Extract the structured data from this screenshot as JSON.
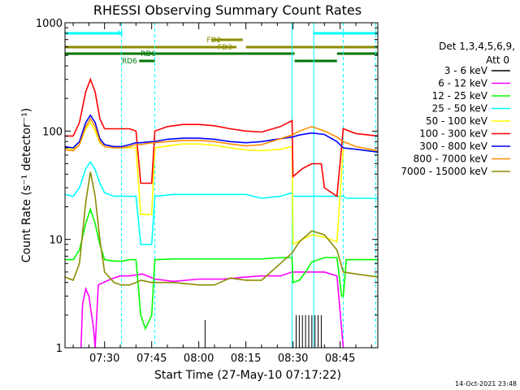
{
  "chart_data": {
    "type": "line",
    "title": "RHESSI Observing Summary Count Rates",
    "xlabel": "Start Time (27-May-10 07:17:22)",
    "ylabel": "Count Rate (s⁻¹ detector⁻¹)",
    "yscale": "log",
    "ylim": [
      1,
      1000
    ],
    "xlim_minutes": [
      17.4,
      117.0
    ],
    "x_ticks": [
      {
        "t": 30,
        "label": "07:30"
      },
      {
        "t": 45,
        "label": "07:45"
      },
      {
        "t": 60,
        "label": "08:00"
      },
      {
        "t": 75,
        "label": "08:15"
      },
      {
        "t": 90,
        "label": "08:30"
      },
      {
        "t": 105,
        "label": "08:45"
      }
    ],
    "y_ticks": [
      {
        "v": 1,
        "label": "1"
      },
      {
        "v": 10,
        "label": "10"
      },
      {
        "v": 100,
        "label": "100"
      },
      {
        "v": 1000,
        "label": "1000"
      }
    ],
    "legend_title": [
      "Det 1,3,4,5,6,9,",
      "Att 0"
    ],
    "legend_placement": "right",
    "footer_date": "14-Oct-2021 23:48",
    "flags": [
      {
        "name": "N",
        "color": "#00ffff",
        "segments": [
          [
            17.4,
            35.4
          ],
          [
            96.5,
            117.0
          ]
        ]
      },
      {
        "name": "FD2",
        "color": "#8b8b00",
        "segments": [
          [
            64,
            74
          ]
        ]
      },
      {
        "name": "FD3",
        "color": "#8b8b00",
        "segments": [
          [
            17.4,
            72
          ],
          [
            75,
            117.0
          ]
        ]
      },
      {
        "name": "RD0",
        "color": "#007700",
        "segments": [
          [
            17.4,
            90.5
          ],
          [
            104,
            117.0
          ]
        ]
      },
      {
        "name": "RD6",
        "color": "#007700",
        "segments": [
          [
            41,
            46
          ],
          [
            90.5,
            104
          ]
        ]
      }
    ],
    "flag_label_t": {
      "N": 35.4,
      "FD2": 62.5,
      "FD3": 66,
      "RD0": 41.5,
      "RD6": 35.5
    },
    "vlines_cyan": [
      35.4,
      46.0,
      89.7,
      96.6,
      106.0,
      116.3
    ],
    "series": [
      {
        "name": "3 - 6 keV",
        "color": "#000000",
        "points": [
          [
            91,
            1
          ],
          [
            91,
            2
          ],
          [
            92,
            1
          ],
          [
            92,
            2
          ],
          [
            93,
            1
          ],
          [
            93,
            2
          ],
          [
            94,
            1
          ],
          [
            94,
            2
          ],
          [
            95,
            1
          ],
          [
            95,
            2
          ],
          [
            96,
            1
          ],
          [
            96,
            2
          ],
          [
            97,
            1
          ],
          [
            97,
            2
          ],
          [
            98,
            1
          ],
          [
            98,
            2
          ],
          [
            99,
            1
          ],
          [
            99,
            2
          ],
          [
            62,
            1
          ],
          [
            62,
            1.8
          ]
        ]
      },
      {
        "name": "6 - 12 keV",
        "color": "#ff00ff",
        "points": [
          [
            22.5,
            1.0
          ],
          [
            23,
            2.5
          ],
          [
            24,
            3.5
          ],
          [
            25,
            3.0
          ],
          [
            26.5,
            1.5
          ],
          [
            27,
            1.0
          ],
          [
            28,
            3.8
          ],
          [
            32,
            4.3
          ],
          [
            35,
            4.6
          ],
          [
            38,
            4.6
          ],
          [
            42,
            4.8
          ],
          [
            46,
            4.3
          ],
          [
            52,
            4.1
          ],
          [
            60,
            4.3
          ],
          [
            68,
            4.3
          ],
          [
            75,
            4.5
          ],
          [
            80,
            4.6
          ],
          [
            86,
            4.6
          ],
          [
            89.7,
            5.0
          ],
          [
            90,
            5.0
          ],
          [
            94,
            5.0
          ],
          [
            100,
            5.0
          ],
          [
            104,
            4.6
          ],
          [
            106,
            1.0
          ]
        ]
      },
      {
        "name": "12 - 25 keV",
        "color": "#00ff00",
        "points": [
          [
            17.4,
            6.5
          ],
          [
            20,
            6.5
          ],
          [
            22,
            8
          ],
          [
            24,
            14
          ],
          [
            25.5,
            19
          ],
          [
            27,
            14
          ],
          [
            28.5,
            9
          ],
          [
            30,
            6.5
          ],
          [
            33,
            6.3
          ],
          [
            35.4,
            6.3
          ],
          [
            38,
            6.5
          ],
          [
            40,
            6.5
          ],
          [
            41.5,
            2
          ],
          [
            43,
            1.5
          ],
          [
            45,
            2
          ],
          [
            46,
            6.5
          ],
          [
            52,
            6.6
          ],
          [
            60,
            6.6
          ],
          [
            68,
            6.6
          ],
          [
            75,
            6.6
          ],
          [
            80,
            6.6
          ],
          [
            86,
            6.8
          ],
          [
            89.7,
            6.8
          ],
          [
            90,
            4
          ],
          [
            92,
            4.2
          ],
          [
            94,
            5
          ],
          [
            96,
            6.2
          ],
          [
            100,
            6.8
          ],
          [
            104,
            6.8
          ],
          [
            105.5,
            3
          ],
          [
            106,
            3
          ],
          [
            107,
            6.5
          ],
          [
            117,
            6.5
          ]
        ]
      },
      {
        "name": "25 - 50 keV",
        "color": "#00ffff",
        "points": [
          [
            17.4,
            26
          ],
          [
            20,
            25
          ],
          [
            22,
            30
          ],
          [
            24,
            45
          ],
          [
            25.5,
            52
          ],
          [
            27,
            44
          ],
          [
            28.5,
            33
          ],
          [
            30,
            27
          ],
          [
            33,
            25
          ],
          [
            35.4,
            25
          ],
          [
            38,
            25
          ],
          [
            40,
            25
          ],
          [
            41.5,
            9
          ],
          [
            45,
            9
          ],
          [
            46,
            25
          ],
          [
            52,
            26
          ],
          [
            60,
            26
          ],
          [
            68,
            26
          ],
          [
            75,
            26
          ],
          [
            80,
            24
          ],
          [
            86,
            25
          ],
          [
            89.7,
            27
          ],
          [
            90,
            25
          ],
          [
            96,
            25
          ],
          [
            100,
            25
          ],
          [
            104,
            25
          ],
          [
            106,
            25
          ],
          [
            107,
            24
          ],
          [
            117,
            24
          ]
        ]
      },
      {
        "name": "50 - 100 keV",
        "color": "#ffff00",
        "points": [
          [
            17.4,
            70
          ],
          [
            20,
            68
          ],
          [
            22,
            75
          ],
          [
            24,
            105
          ],
          [
            25.5,
            120
          ],
          [
            27,
            100
          ],
          [
            28.5,
            78
          ],
          [
            30,
            72
          ],
          [
            33,
            70
          ],
          [
            35.4,
            70
          ],
          [
            38,
            70
          ],
          [
            40,
            70
          ],
          [
            41.5,
            17
          ],
          [
            45,
            17
          ],
          [
            46,
            70
          ],
          [
            50,
            73
          ],
          [
            55,
            76
          ],
          [
            60,
            76
          ],
          [
            65,
            74
          ],
          [
            70,
            70
          ],
          [
            75,
            67
          ],
          [
            80,
            66
          ],
          [
            86,
            68
          ],
          [
            89.7,
            72
          ],
          [
            90,
            9
          ],
          [
            93,
            10
          ],
          [
            96,
            11
          ],
          [
            100,
            10.5
          ],
          [
            104,
            9.5
          ],
          [
            106,
            70
          ],
          [
            110,
            68
          ],
          [
            117,
            65
          ]
        ]
      },
      {
        "name": "100 - 300 keV",
        "color": "#ff0000",
        "points": [
          [
            17.4,
            90
          ],
          [
            20,
            90
          ],
          [
            22,
            120
          ],
          [
            24,
            230
          ],
          [
            25.5,
            300
          ],
          [
            27,
            230
          ],
          [
            28.5,
            130
          ],
          [
            30,
            105
          ],
          [
            33,
            105
          ],
          [
            35.4,
            105
          ],
          [
            38,
            105
          ],
          [
            40,
            100
          ],
          [
            41.5,
            33
          ],
          [
            45,
            33
          ],
          [
            46,
            100
          ],
          [
            50,
            110
          ],
          [
            55,
            115
          ],
          [
            60,
            115
          ],
          [
            65,
            112
          ],
          [
            70,
            105
          ],
          [
            75,
            100
          ],
          [
            80,
            98
          ],
          [
            86,
            110
          ],
          [
            89.7,
            125
          ],
          [
            90,
            38
          ],
          [
            93,
            45
          ],
          [
            96,
            50
          ],
          [
            99,
            50
          ],
          [
            100,
            30
          ],
          [
            104,
            25
          ],
          [
            106,
            105
          ],
          [
            110,
            95
          ],
          [
            117,
            90
          ]
        ]
      },
      {
        "name": "300 - 800 keV",
        "color": "#0000ff",
        "points": [
          [
            17.4,
            72
          ],
          [
            20,
            70
          ],
          [
            22,
            80
          ],
          [
            24,
            120
          ],
          [
            25.5,
            140
          ],
          [
            27,
            120
          ],
          [
            28.5,
            85
          ],
          [
            30,
            75
          ],
          [
            33,
            72
          ],
          [
            35.4,
            72
          ],
          [
            38,
            75
          ],
          [
            40,
            78
          ],
          [
            41.5,
            78
          ],
          [
            45,
            80
          ],
          [
            46,
            80
          ],
          [
            50,
            84
          ],
          [
            55,
            86
          ],
          [
            60,
            86
          ],
          [
            65,
            84
          ],
          [
            70,
            80
          ],
          [
            75,
            78
          ],
          [
            80,
            80
          ],
          [
            86,
            85
          ],
          [
            89.7,
            88
          ],
          [
            92,
            92
          ],
          [
            96,
            96
          ],
          [
            100,
            93
          ],
          [
            104,
            80
          ],
          [
            106,
            70
          ],
          [
            110,
            68
          ],
          [
            117,
            64
          ]
        ]
      },
      {
        "name": "800 - 7000 keV",
        "color": "#ff8c00",
        "points": [
          [
            17.4,
            67
          ],
          [
            20,
            66
          ],
          [
            22,
            75
          ],
          [
            24,
            110
          ],
          [
            25.5,
            130
          ],
          [
            27,
            110
          ],
          [
            28.5,
            80
          ],
          [
            30,
            72
          ],
          [
            33,
            70
          ],
          [
            35.4,
            70
          ],
          [
            38,
            72
          ],
          [
            40,
            75
          ],
          [
            41.5,
            75
          ],
          [
            45,
            78
          ],
          [
            46,
            78
          ],
          [
            50,
            80
          ],
          [
            55,
            82
          ],
          [
            60,
            82
          ],
          [
            65,
            80
          ],
          [
            70,
            76
          ],
          [
            75,
            73
          ],
          [
            80,
            75
          ],
          [
            86,
            85
          ],
          [
            89.7,
            92
          ],
          [
            92,
            100
          ],
          [
            96,
            110
          ],
          [
            100,
            100
          ],
          [
            104,
            88
          ],
          [
            106,
            80
          ],
          [
            110,
            72
          ],
          [
            117,
            66
          ]
        ]
      },
      {
        "name": "7000 - 15000 keV",
        "color": "#8b8b00",
        "points": [
          [
            17.4,
            4.5
          ],
          [
            20,
            4.2
          ],
          [
            22,
            6
          ],
          [
            24,
            22
          ],
          [
            25.5,
            42
          ],
          [
            27,
            25
          ],
          [
            28.5,
            10
          ],
          [
            30,
            5
          ],
          [
            33,
            4
          ],
          [
            35.4,
            3.8
          ],
          [
            38,
            3.8
          ],
          [
            40,
            4
          ],
          [
            41.5,
            4.2
          ],
          [
            45,
            4
          ],
          [
            46,
            4
          ],
          [
            52,
            4
          ],
          [
            60,
            3.8
          ],
          [
            65,
            3.8
          ],
          [
            70,
            4.4
          ],
          [
            75,
            4.2
          ],
          [
            80,
            4.2
          ],
          [
            86,
            6
          ],
          [
            89.7,
            7.5
          ],
          [
            92,
            9.5
          ],
          [
            96,
            12
          ],
          [
            100,
            11
          ],
          [
            104,
            8
          ],
          [
            106,
            5
          ],
          [
            110,
            4.8
          ],
          [
            117,
            4.5
          ]
        ]
      }
    ]
  }
}
